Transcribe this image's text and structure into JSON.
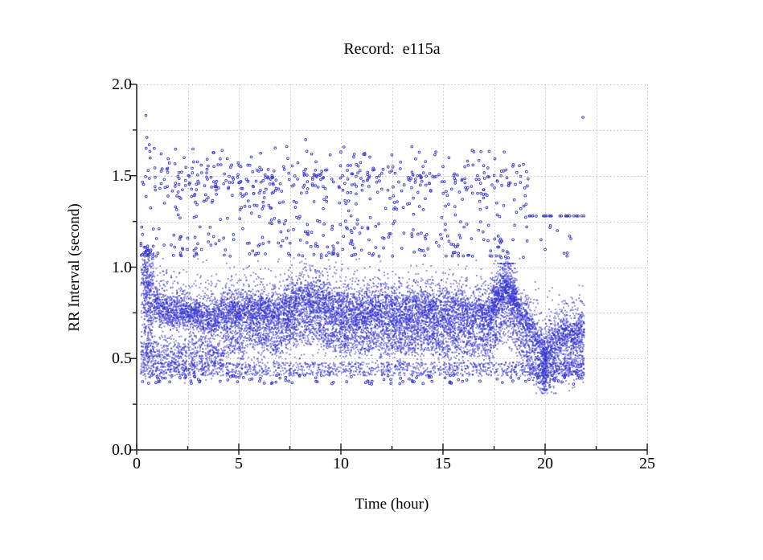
{
  "chart": {
    "title": "Record:  e115a",
    "xlabel": "Time (hour)",
    "ylabel": "RR Interval (second)"
  },
  "chart_data": {
    "type": "scatter",
    "title": "Record:  e115a",
    "xlabel": "Time (hour)",
    "ylabel": "RR Interval (second)",
    "xlim": [
      0,
      25
    ],
    "ylim": [
      0.0,
      2.0
    ],
    "x_major_ticks": [
      0,
      5,
      10,
      15,
      20,
      25
    ],
    "x_tick_labels": [
      "0",
      "5",
      "10",
      "15",
      "20",
      "25"
    ],
    "x_minor_step": 2.5,
    "y_major_ticks": [
      0,
      0.5,
      1,
      1.5,
      2
    ],
    "y_tick_labels": [
      "0.0",
      "0.5",
      "1.0",
      "1.5",
      "2.0"
    ],
    "y_minor_step": 0.25,
    "grid": {
      "visible": true,
      "style": "dotted",
      "color": "#b4b4b4",
      "x_step": 2.5,
      "y_step": 0.25
    },
    "axis_color": "#1a1a1a",
    "point_color": "#3434d4",
    "background": "#ffffff",
    "time_range": [
      0.2,
      21.92
    ],
    "n_points_rendered": 15500,
    "seed": 115,
    "trend": {
      "t": [
        0.33,
        0.55,
        0.8,
        1.2,
        1.7,
        2.2,
        2.8,
        3.3,
        3.7,
        4.1,
        4.6,
        5.1,
        5.6,
        6.1,
        6.6,
        7.0,
        7.5,
        8.0,
        8.6,
        9.2,
        9.7,
        10.3,
        11.0,
        11.7,
        12.4,
        13.1,
        13.8,
        14.5,
        15.2,
        15.9,
        16.4,
        16.9,
        17.3,
        17.7,
        18.1,
        18.45,
        18.8,
        19.2,
        19.55,
        19.9,
        20.2,
        20.55,
        20.9,
        21.25,
        21.6,
        21.92
      ],
      "rr": [
        0.87,
        0.85,
        0.8,
        0.76,
        0.74,
        0.75,
        0.73,
        0.71,
        0.7,
        0.73,
        0.75,
        0.74,
        0.75,
        0.76,
        0.74,
        0.73,
        0.78,
        0.8,
        0.81,
        0.79,
        0.76,
        0.74,
        0.74,
        0.75,
        0.74,
        0.73,
        0.75,
        0.74,
        0.73,
        0.75,
        0.72,
        0.74,
        0.72,
        0.8,
        0.86,
        0.8,
        0.73,
        0.67,
        0.6,
        0.53,
        0.55,
        0.61,
        0.64,
        0.6,
        0.63,
        0.66
      ]
    },
    "scatter_model": {
      "weights": {
        "core": 0.48,
        "lower": 0.24,
        "upper": 0.13,
        "bottom": 0.1,
        "high": 0.05
      },
      "core_sigma": 0.045,
      "core_sigma_mid": 0.06,
      "core_sigma_start": 0.12,
      "lower_offset": 0.145,
      "lower_center_early": 0.52,
      "lower_sigma": 0.055,
      "upper_spread": 0.1,
      "bottom_band": [
        0.405,
        0.48
      ],
      "high_cluster_mean": 1.47,
      "high_cluster_sigma": 0.06,
      "high_range": [
        1.06,
        1.66
      ],
      "clamp": [
        0.31,
        1.88
      ]
    },
    "features": {
      "early_tall_column": {
        "t": [
          0.33,
          0.85
        ],
        "rr": [
          0.5,
          1.1
        ],
        "n": 200
      },
      "evening_spikes": {
        "t": [
          17.35,
          18.65
        ],
        "max_rr": 1.02,
        "n": 380
      },
      "late_dip_streak": {
        "t": [
          19.88,
          20.08
        ],
        "rr": [
          0.32,
          0.56
        ],
        "n": 130
      }
    },
    "outliers_high": [
      [
        0.45,
        1.83
      ],
      [
        0.5,
        1.71
      ],
      [
        0.62,
        1.67
      ],
      [
        0.9,
        1.44
      ],
      [
        1.2,
        1.62
      ],
      [
        1.35,
        1.48
      ],
      [
        1.6,
        1.57
      ],
      [
        1.9,
        1.33
      ],
      [
        2.2,
        1.52
      ],
      [
        2.6,
        1.46
      ],
      [
        3.1,
        1.22
      ],
      [
        3.5,
        1.38
      ],
      [
        3.9,
        1.44
      ],
      [
        4.3,
        1.51
      ],
      [
        4.7,
        1.49
      ],
      [
        5.1,
        1.55
      ],
      [
        5.45,
        1.47
      ],
      [
        5.9,
        1.53
      ],
      [
        6.3,
        1.49
      ],
      [
        6.8,
        1.42
      ],
      [
        7.2,
        1.55
      ],
      [
        7.7,
        1.45
      ],
      [
        8.2,
        1.51
      ],
      [
        8.8,
        1.5
      ],
      [
        9.3,
        1.36
      ],
      [
        9.9,
        1.44
      ],
      [
        10.5,
        1.28
      ],
      [
        11.1,
        1.47
      ],
      [
        11.8,
        1.41
      ],
      [
        12.4,
        1.52
      ],
      [
        13.1,
        1.45
      ],
      [
        13.75,
        1.5
      ],
      [
        14.4,
        1.42
      ],
      [
        15.0,
        1.55
      ],
      [
        15.6,
        1.46
      ],
      [
        16.2,
        1.58
      ],
      [
        16.8,
        1.36
      ],
      [
        17.4,
        1.45
      ],
      [
        18.0,
        1.63
      ],
      [
        18.6,
        1.3
      ],
      [
        19.1,
        1.22
      ],
      [
        19.8,
        1.15
      ],
      [
        20.6,
        1.2
      ],
      [
        21.2,
        1.17
      ],
      [
        21.85,
        1.82
      ]
    ]
  }
}
